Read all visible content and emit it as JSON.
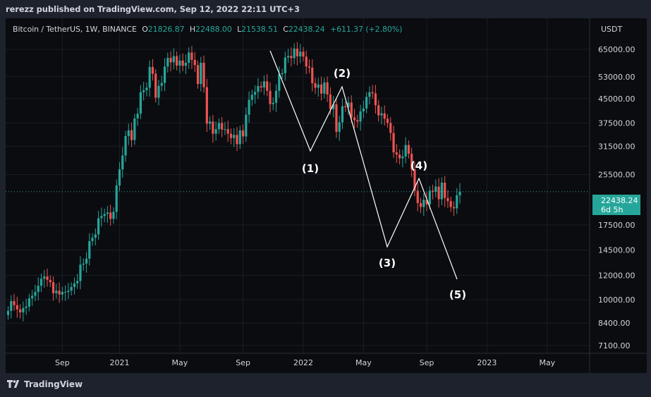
{
  "header": {
    "published_text": "rerezz published on TradingView.com, Sep 12, 2022 22:11 UTC+3"
  },
  "legend": {
    "symbol": "Bitcoin / TetherUS, 1W, BINANCE",
    "open_label": "O",
    "open": "21826.87",
    "high_label": "H",
    "high": "22488.00",
    "low_label": "L",
    "low": "21538.51",
    "close_label": "C",
    "close": "22438.24",
    "change": "+611.37 (+2.80%)"
  },
  "currency": "USDT",
  "price_badge": {
    "price": "22438.24",
    "countdown": "6d 5h"
  },
  "footer": {
    "brand": "TradingView"
  },
  "colors": {
    "up": "#26a69a",
    "down": "#ef5350",
    "background": "#0b0c10",
    "wave": "#ffffff"
  },
  "chart_data": {
    "type": "candlestick",
    "y_scale": "log",
    "ylim": [
      6700,
      82000
    ],
    "y_ticks": [
      "65000.00",
      "53000.00",
      "45000.00",
      "37500.00",
      "31500.00",
      "25500.00",
      "17500.00",
      "14500.00",
      "12000.00",
      "10000.00",
      "8400.00",
      "7100.00"
    ],
    "x_ticks": [
      "Sep",
      "2021",
      "May",
      "Sep",
      "2022",
      "May",
      "Sep",
      "2023",
      "May"
    ],
    "current_price": 22438.24,
    "candles_close": [
      9200,
      9900,
      9600,
      9300,
      9100,
      9400,
      9500,
      10100,
      10300,
      10600,
      11100,
      11700,
      11900,
      11600,
      11400,
      10500,
      10700,
      10400,
      10600,
      10600,
      10700,
      11000,
      11300,
      11500,
      13000,
      13100,
      13600,
      15500,
      15900,
      16300,
      18400,
      18700,
      19000,
      19200,
      18300,
      19300,
      23500,
      26500,
      29400,
      34000,
      35500,
      33000,
      38800,
      40200,
      47200,
      47900,
      48800,
      57000,
      54200,
      45300,
      49500,
      50600,
      57200,
      61000,
      59000,
      61800,
      57600,
      59800,
      57500,
      58800,
      63500,
      60100,
      57800,
      50200,
      58800,
      49000,
      37300,
      37900,
      34600,
      35800,
      37500,
      35700,
      35800,
      34600,
      33500,
      34300,
      32000,
      35500,
      33900,
      39900,
      44600,
      46300,
      47300,
      49400,
      48900,
      51200,
      47700,
      43200,
      43600,
      47700,
      54000,
      54400,
      61200,
      61900,
      60900,
      65400,
      61700,
      63900,
      61600,
      57200,
      56700,
      50500,
      48800,
      50000,
      46700,
      50800,
      46400,
      41600,
      43100,
      35100,
      37700,
      42500,
      42200,
      43700,
      39100,
      38300,
      37900,
      40900,
      41800,
      45600,
      47200,
      46800,
      42800,
      39700,
      40300,
      38700,
      37500,
      34800,
      30100,
      29600,
      28800,
      29200,
      31800,
      29800,
      26500,
      22600,
      20600,
      20000,
      21100,
      20400,
      22600,
      22400,
      23300,
      21200,
      24000,
      21400,
      20900,
      20000,
      19800,
      21826,
      22438
    ],
    "annotations": [
      {
        "label": "(1)",
        "price": 32600
      },
      {
        "label": "(2)",
        "price": 53000
      },
      {
        "label": "(3)",
        "price": 15800
      },
      {
        "label": "(4)",
        "price": 26500
      },
      {
        "label": "(5)",
        "price": 12200
      }
    ]
  }
}
